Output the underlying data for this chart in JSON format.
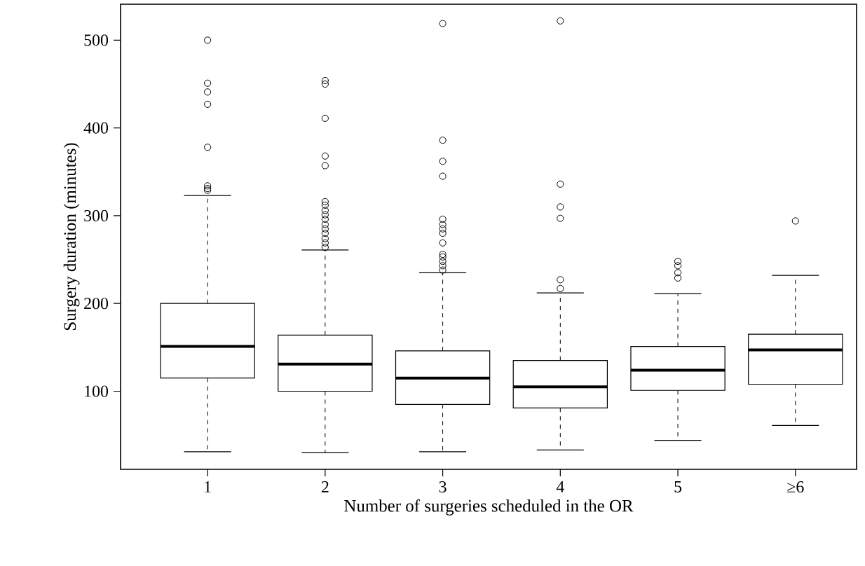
{
  "chart_data": {
    "type": "box",
    "xlabel": "Number of surgeries scheduled in the OR",
    "ylabel": "Surgery duration (minutes)",
    "categories": [
      "1",
      "2",
      "3",
      "4",
      "5",
      "≥6"
    ],
    "ylim": [
      11,
      541
    ],
    "yticks": [
      100,
      200,
      300,
      400,
      500
    ],
    "grid": false,
    "boxes": [
      {
        "low": 31,
        "q1": 115,
        "median": 151,
        "q3": 200,
        "high": 323,
        "outliers": [
          500,
          451,
          441,
          427,
          378,
          334,
          331,
          329
        ]
      },
      {
        "low": 30,
        "q1": 100,
        "median": 131,
        "q3": 164,
        "high": 261,
        "outliers": [
          454,
          450,
          411,
          368,
          357,
          316,
          312,
          306,
          301,
          296,
          290,
          285,
          280,
          274,
          269,
          264
        ]
      },
      {
        "low": 31,
        "q1": 85,
        "median": 115,
        "q3": 146,
        "high": 235,
        "outliers": [
          519,
          386,
          362,
          345,
          296,
          290,
          285,
          280,
          269,
          256,
          253,
          248,
          243,
          238
        ]
      },
      {
        "low": 33,
        "q1": 81,
        "median": 105,
        "q3": 135,
        "high": 212,
        "outliers": [
          522,
          336,
          310,
          297,
          227,
          217
        ]
      },
      {
        "low": 44,
        "q1": 101,
        "median": 124,
        "q3": 151,
        "high": 211,
        "outliers": [
          248,
          243,
          235,
          229
        ]
      },
      {
        "low": 61,
        "q1": 108,
        "median": 147,
        "q3": 165,
        "high": 232,
        "outliers": [
          294
        ]
      }
    ]
  }
}
